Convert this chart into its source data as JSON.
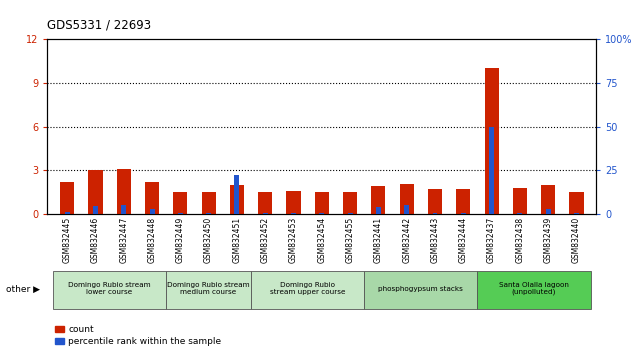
{
  "title": "GDS5331 / 22693",
  "samples": [
    "GSM832445",
    "GSM832446",
    "GSM832447",
    "GSM832448",
    "GSM832449",
    "GSM832450",
    "GSM832451",
    "GSM832452",
    "GSM832453",
    "GSM832454",
    "GSM832455",
    "GSM832441",
    "GSM832442",
    "GSM832443",
    "GSM832444",
    "GSM832437",
    "GSM832438",
    "GSM832439",
    "GSM832440"
  ],
  "count": [
    2.2,
    3.0,
    3.1,
    2.2,
    1.5,
    1.5,
    2.0,
    1.5,
    1.6,
    1.5,
    1.5,
    1.9,
    2.1,
    1.7,
    1.7,
    10.0,
    1.8,
    2.0,
    1.5
  ],
  "percentile": [
    1.5,
    4.6,
    5.0,
    2.9,
    0.8,
    0.8,
    22.5,
    0.8,
    0.8,
    0.8,
    0.8,
    4.2,
    5.0,
    0.8,
    0.8,
    50.0,
    0.8,
    2.9,
    0.8
  ],
  "groups": [
    {
      "label": "Domingo Rubio stream\nlower course",
      "start": 0,
      "end": 4,
      "color": "#c8e8c8"
    },
    {
      "label": "Domingo Rubio stream\nmedium course",
      "start": 4,
      "end": 7,
      "color": "#c8e8c8"
    },
    {
      "label": "Domingo Rubio\nstream upper course",
      "start": 7,
      "end": 11,
      "color": "#c8e8c8"
    },
    {
      "label": "phosphogypsum stacks",
      "start": 11,
      "end": 15,
      "color": "#a8d8a8"
    },
    {
      "label": "Santa Olalla lagoon\n(unpolluted)",
      "start": 15,
      "end": 19,
      "color": "#55cc55"
    }
  ],
  "ylim_left": [
    0,
    12
  ],
  "ylim_right": [
    0,
    100
  ],
  "yticks_left": [
    0,
    3,
    6,
    9,
    12
  ],
  "yticks_right": [
    0,
    25,
    50,
    75,
    100
  ],
  "bar_width": 0.5,
  "count_color": "#cc2200",
  "percentile_color": "#2255cc",
  "bg_color": "#ffffff",
  "grid_color": "#000000",
  "tick_label_color": "#cc2200",
  "right_tick_color": "#2255cc",
  "xtick_bg_color": "#c8c8c8",
  "group_border_color": "#888888"
}
